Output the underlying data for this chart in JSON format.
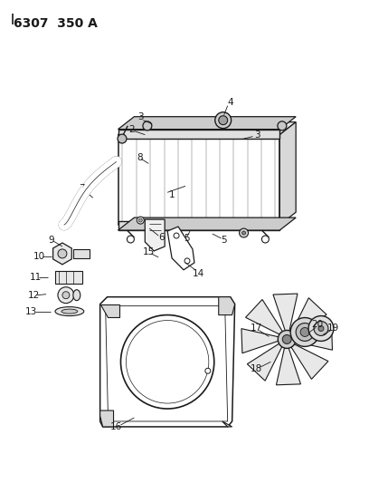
{
  "title": "6307  350 A",
  "bg_color": "#ffffff",
  "line_color": "#1a1a1a",
  "title_fontsize": 10,
  "label_fontsize": 7.5,
  "fig_width": 4.08,
  "fig_height": 5.33,
  "dpi": 100
}
